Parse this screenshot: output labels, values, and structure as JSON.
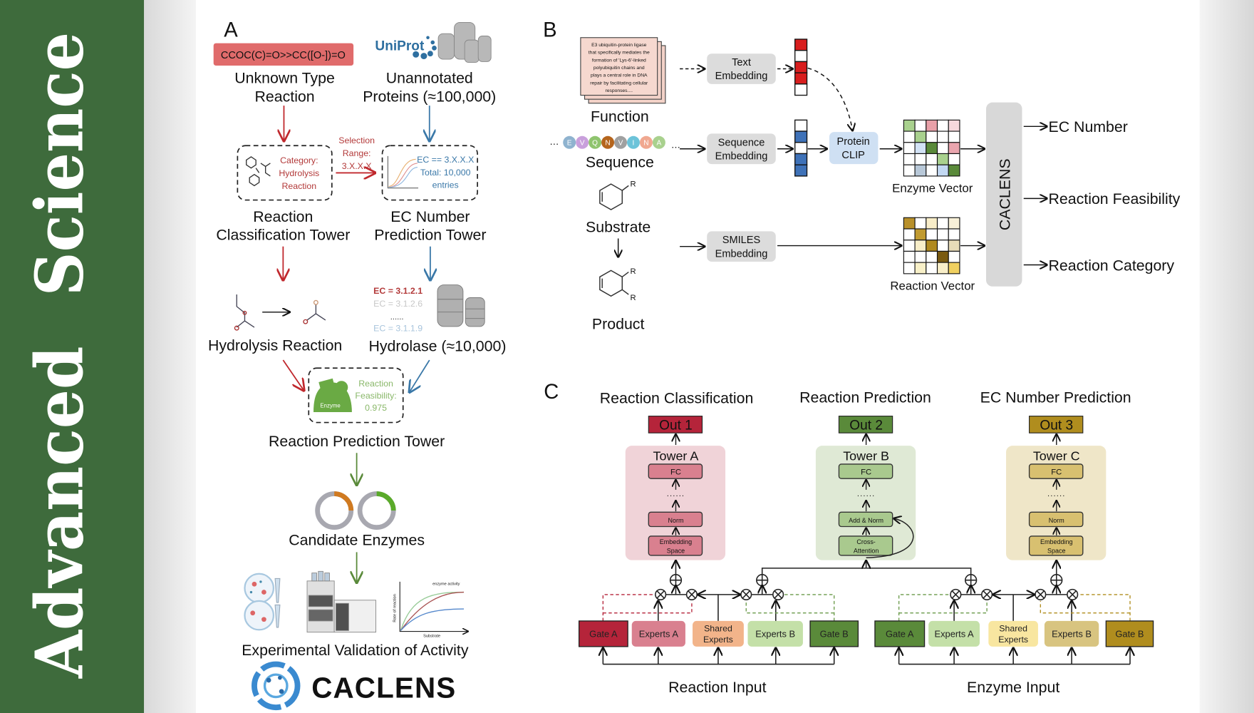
{
  "sidebar": {
    "journal_title_line1": "Advanced",
    "journal_title_line2": "Science",
    "color": "#3e6b3c"
  },
  "panel_a": {
    "label": "A",
    "smiles": "CCOC(C)=O>>CC([O-])=O",
    "unknown_reaction": [
      "Unknown Type",
      "Reaction"
    ],
    "uniprot_logo": "UniProt",
    "unannotated": [
      "Unannotated",
      "Proteins (≈100,000)"
    ],
    "classification_box": [
      "Category:",
      "Hydrolysis",
      "Reaction"
    ],
    "selection_range": [
      "Selection",
      "Range:",
      "3.X.X.X"
    ],
    "ec_box": [
      "EC == 3.X.X.X",
      "Total: 10,000",
      "entries"
    ],
    "classification_tower": [
      "Reaction",
      "Classification Tower"
    ],
    "ec_tower": [
      "EC Number",
      "Prediction Tower"
    ],
    "hydrolysis_reaction": "Hydrolysis Reaction",
    "ec_list": [
      "EC = 3.1.2.1",
      "EC = 3.1.2.6",
      "......",
      "EC = 3.1.1.9"
    ],
    "hydrolase": "Hydrolase (≈10,000)",
    "enzyme_label": "Enzyme",
    "feasibility": [
      "Reaction",
      "Feasibility:",
      "0.975"
    ],
    "reaction_prediction_tower": "Reaction Prediction Tower",
    "candidate_enzymes": "Candidate Enzymes",
    "plot_title": "enzyme activity",
    "plot_ylabel": "Rate of reaction",
    "plot_xlabel": "Substrate",
    "experimental_validation": "Experimental Validation of Activity",
    "logo_text": "CACLENS"
  },
  "panel_b": {
    "label": "B",
    "function_text": [
      "E3 ubiquitin-protein ligase",
      "that specifically mediates the",
      "formation of 'Lys-6'-linked",
      "polyubiquitin chains and",
      "plays a central role in DNA",
      "repair by facilitating cellular",
      "responses...."
    ],
    "function": "Function",
    "sequence_residues": [
      "E",
      "V",
      "Q",
      "N",
      "V",
      "I",
      "N",
      "A"
    ],
    "sequence_colors": [
      "#8fb3cf",
      "#c9a0dc",
      "#8fc46e",
      "#b5651d",
      "#a0a0a0",
      "#6cc3d9",
      "#f0a890",
      "#a9d18e"
    ],
    "sequence": "Sequence",
    "substrate": "Substrate",
    "product": "Product",
    "r_group": "R",
    "text_embedding": [
      "Text",
      "Embedding"
    ],
    "sequence_embedding": [
      "Sequence",
      "Embedding"
    ],
    "smiles_embedding": [
      "SMILES",
      "Embedding"
    ],
    "protein_clip": [
      "Protein",
      "CLIP"
    ],
    "text_vector": [
      "#d81e1e",
      "#ffffff",
      "#d81e1e",
      "#d81e1e",
      "#ffffff"
    ],
    "sequence_vector": [
      "#ffffff",
      "#3f72b8",
      "#ffffff",
      "#3f72b8",
      "#3f72b8"
    ],
    "enzyme_vector_label": "Enzyme Vector",
    "enzyme_matrix": [
      [
        "#a9d18e",
        "#ffffff",
        "#e8a0a8",
        "#ffffff",
        "#f6d8dc"
      ],
      [
        "#ffffff",
        "#a9d18e",
        "#ffffff",
        "#ffffff",
        "#ffffff"
      ],
      [
        "#ffffff",
        "#d2e2f5",
        "#5a8a3a",
        "#ffffff",
        "#eaa5ae"
      ],
      [
        "#ffffff",
        "#ffffff",
        "#ffffff",
        "#a9d18e",
        "#ffffff"
      ],
      [
        "#ffffff",
        "#b8c8d8",
        "#ffffff",
        "#c2d8f2",
        "#5a8a3a"
      ]
    ],
    "reaction_vector_label": "Reaction Vector",
    "reaction_matrix": [
      [
        "#b8902a",
        "#ffffff",
        "#f8edc8",
        "#ffffff",
        "#f8f0d8"
      ],
      [
        "#ffffff",
        "#c09a30",
        "#ffffff",
        "#ffffff",
        "#ffffff"
      ],
      [
        "#ffffff",
        "#f8eec8",
        "#b08a20",
        "#ffffff",
        "#e8dcb8"
      ],
      [
        "#ffffff",
        "#ffffff",
        "#ffffff",
        "#7a5a10",
        "#ffffff"
      ],
      [
        "#ffffff",
        "#f8f0c8",
        "#ffffff",
        "#f8eec8",
        "#f0d060"
      ]
    ],
    "model_name": "CACLENS",
    "outputs": [
      "EC Number",
      "Reaction Feasibility",
      "Reaction Category"
    ]
  },
  "panel_c": {
    "label": "C",
    "titles": [
      "Reaction Classification",
      "Reaction Prediction",
      "EC Number Prediction"
    ],
    "outs": [
      "Out 1",
      "Out 2",
      "Out 3"
    ],
    "towers": [
      {
        "name": "Tower A",
        "layers": [
          "FC",
          "Norm",
          "Embedding Space"
        ],
        "bg": "#f0d3d8",
        "fill": "#d9808f",
        "out": "#b5243a"
      },
      {
        "name": "Tower B",
        "layers": [
          "FC",
          "Add & Norm",
          "Cross-Attention"
        ],
        "bg": "#dfe9d5",
        "fill": "#a9c98e",
        "out": "#5a8a3a"
      },
      {
        "name": "Tower C",
        "layers": [
          "FC",
          "Norm",
          "Embedding Space"
        ],
        "bg": "#efe6c8",
        "fill": "#d8c070",
        "out": "#b08d1e"
      }
    ],
    "dots": "......",
    "reaction_blocks": [
      {
        "label": "Gate A",
        "color": "#b5243a"
      },
      {
        "label": "Experts A",
        "color": "#d9808f"
      },
      {
        "label": "Shared Experts",
        "color": "#f2b48a"
      },
      {
        "label": "Experts B",
        "color": "#c4e0a8"
      },
      {
        "label": "Gate B",
        "color": "#5a8a3a"
      }
    ],
    "enzyme_blocks": [
      {
        "label": "Gate A",
        "color": "#5a8a3a"
      },
      {
        "label": "Experts A",
        "color": "#c4e0a8"
      },
      {
        "label": "Shared Experts",
        "color": "#f8e6a0"
      },
      {
        "label": "Experts B",
        "color": "#d8c480"
      },
      {
        "label": "Gate B",
        "color": "#b08d1e"
      }
    ],
    "reaction_input": "Reaction Input",
    "enzyme_input": "Enzyme Input"
  }
}
